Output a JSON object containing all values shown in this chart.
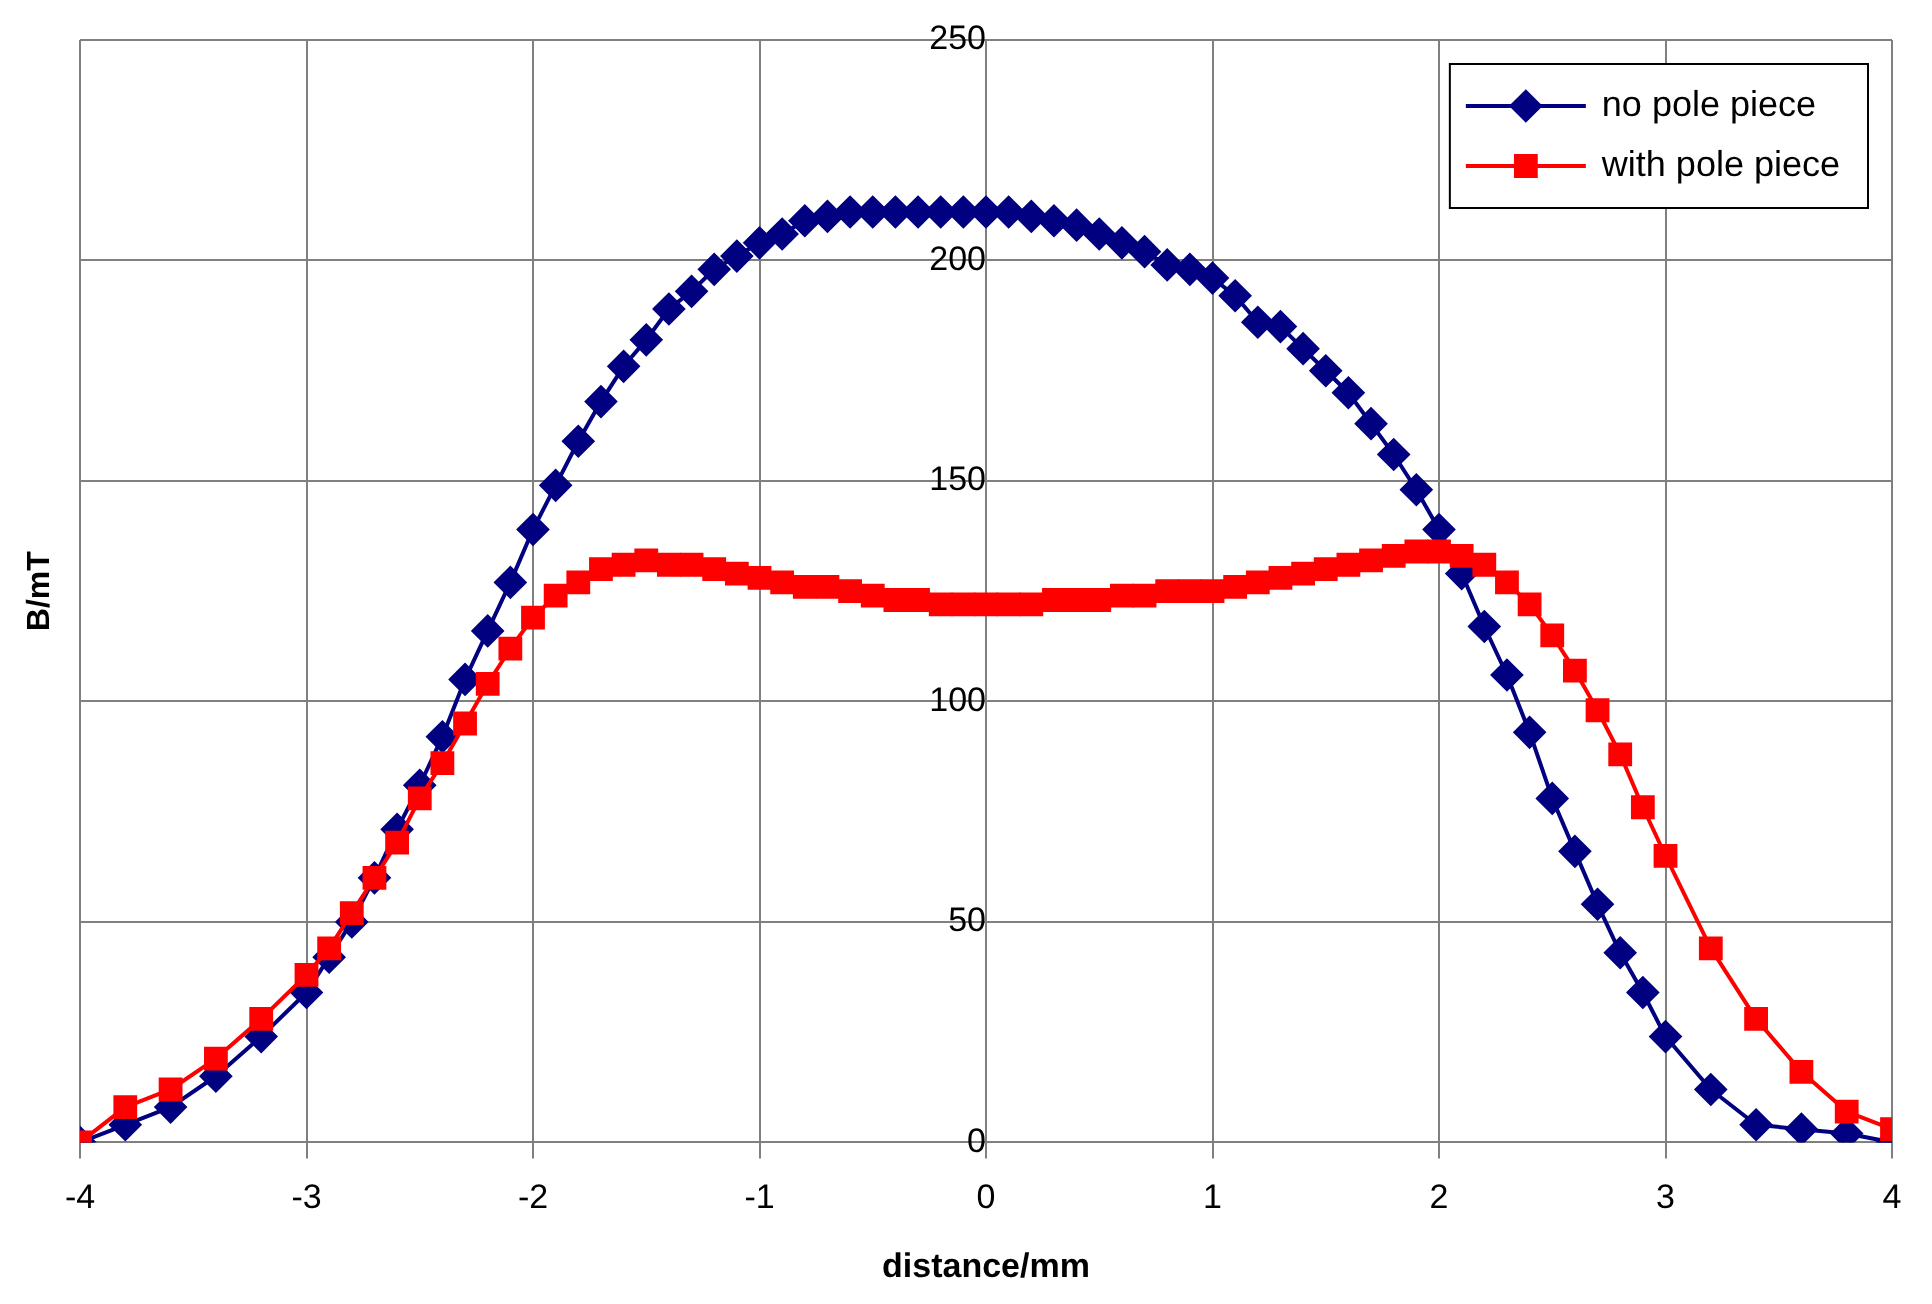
{
  "chart_data": {
    "type": "line",
    "xlabel": "distance/mm",
    "ylabel": "B/mT",
    "xlim": [
      -4,
      4
    ],
    "xticks": [
      -4,
      -3,
      -2,
      -1,
      0,
      1,
      2,
      3,
      4
    ],
    "ylim": [
      0,
      250
    ],
    "yticks": [
      0,
      50,
      100,
      150,
      200,
      250
    ],
    "grid": true,
    "legend": "top right",
    "series": [
      {
        "name": "no pole piece",
        "color": "#000080",
        "marker": "diamond",
        "x": [
          -4,
          -3.8,
          -3.6,
          -3.4,
          -3.2,
          -3,
          -2.9,
          -2.8,
          -2.7,
          -2.6,
          -2.5,
          -2.4,
          -2.3,
          -2.2,
          -2.1,
          -2,
          -1.9,
          -1.8,
          -1.7,
          -1.6,
          -1.5,
          -1.4,
          -1.3,
          -1.2,
          -1.1,
          -1,
          -0.9,
          -0.8,
          -0.7,
          -0.6,
          -0.5,
          -0.4,
          -0.3,
          -0.2,
          -0.1,
          0,
          0.1,
          0.2,
          0.3,
          0.4,
          0.5,
          0.6,
          0.7,
          0.8,
          0.9,
          1,
          1.1,
          1.2,
          1.3,
          1.4,
          1.5,
          1.6,
          1.7,
          1.8,
          1.9,
          2,
          2.1,
          2.2,
          2.3,
          2.4,
          2.5,
          2.6,
          2.7,
          2.8,
          2.9,
          3,
          3.2,
          3.4,
          3.6,
          3.8,
          4
        ],
        "values": [
          0,
          4,
          8,
          15,
          24,
          34,
          42,
          50,
          60,
          71,
          81,
          92,
          105,
          116,
          127,
          139,
          149,
          159,
          168,
          176,
          182,
          189,
          193,
          198,
          201,
          204,
          206,
          209,
          210,
          211,
          211,
          211,
          211,
          211,
          211,
          211,
          211,
          210,
          209,
          208,
          206,
          204,
          202,
          199,
          198,
          196,
          192,
          186,
          185,
          180,
          175,
          170,
          163,
          156,
          148,
          139,
          129,
          117,
          106,
          93,
          78,
          66,
          54,
          43,
          34,
          24,
          12,
          4,
          3,
          2,
          0
        ]
      },
      {
        "name": "with pole piece",
        "color": "#ff0000",
        "marker": "square",
        "x": [
          -4,
          -3.8,
          -3.6,
          -3.4,
          -3.2,
          -3,
          -2.9,
          -2.8,
          -2.7,
          -2.6,
          -2.5,
          -2.4,
          -2.3,
          -2.2,
          -2.1,
          -2,
          -1.9,
          -1.8,
          -1.7,
          -1.6,
          -1.5,
          -1.4,
          -1.3,
          -1.2,
          -1.1,
          -1,
          -0.9,
          -0.8,
          -0.7,
          -0.6,
          -0.5,
          -0.4,
          -0.3,
          -0.2,
          -0.1,
          0,
          0.1,
          0.2,
          0.3,
          0.4,
          0.5,
          0.6,
          0.7,
          0.8,
          0.9,
          1,
          1.1,
          1.2,
          1.3,
          1.4,
          1.5,
          1.6,
          1.7,
          1.8,
          1.9,
          2,
          2.1,
          2.2,
          2.3,
          2.4,
          2.5,
          2.6,
          2.7,
          2.8,
          2.9,
          3,
          3.2,
          3.4,
          3.6,
          3.8,
          4
        ],
        "values": [
          0,
          8,
          12,
          19,
          28,
          38,
          44,
          52,
          60,
          68,
          78,
          86,
          95,
          104,
          112,
          119,
          124,
          127,
          130,
          131,
          132,
          131,
          131,
          130,
          129,
          128,
          127,
          126,
          126,
          125,
          124,
          123,
          123,
          122,
          122,
          122,
          122,
          122,
          123,
          123,
          123,
          124,
          124,
          125,
          125,
          125,
          126,
          127,
          128,
          129,
          130,
          131,
          132,
          133,
          134,
          134,
          133,
          131,
          127,
          122,
          115,
          107,
          98,
          88,
          76,
          65,
          44,
          28,
          16,
          7,
          3
        ]
      }
    ]
  }
}
